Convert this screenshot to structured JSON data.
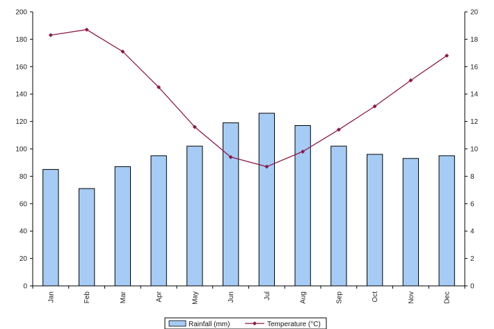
{
  "chart_data": {
    "type": "bar",
    "categories": [
      "Jan",
      "Feb",
      "Mar",
      "Apr",
      "May",
      "Jun",
      "Jul",
      "Aug",
      "Sep",
      "Oct",
      "Nov",
      "Dec"
    ],
    "series": [
      {
        "name": "Rainfall (mm)",
        "type": "bar",
        "axis": "left",
        "values": [
          85,
          71,
          87,
          95,
          102,
          119,
          126,
          117,
          102,
          96,
          93,
          95
        ],
        "color": "#a6ccf5",
        "edge_color": "#000000"
      },
      {
        "name": "Temperature (°C)",
        "type": "line",
        "axis": "right",
        "values": [
          18.3,
          18.7,
          17.1,
          14.5,
          11.6,
          9.4,
          8.7,
          9.8,
          11.4,
          13.1,
          15.0,
          16.8
        ],
        "color": "#8b1a4a"
      }
    ],
    "y_left": {
      "min": 0,
      "max": 200,
      "ticks": [
        0,
        20,
        40,
        60,
        80,
        100,
        120,
        140,
        160,
        180,
        200
      ]
    },
    "y_right": {
      "min": 0,
      "max": 20,
      "ticks": [
        0,
        2,
        4,
        6,
        8,
        10,
        12,
        14,
        16,
        18,
        20
      ]
    },
    "title": "",
    "xlabel": "",
    "ylabel": "",
    "grid": false,
    "legend": {
      "position": "bottom"
    }
  }
}
